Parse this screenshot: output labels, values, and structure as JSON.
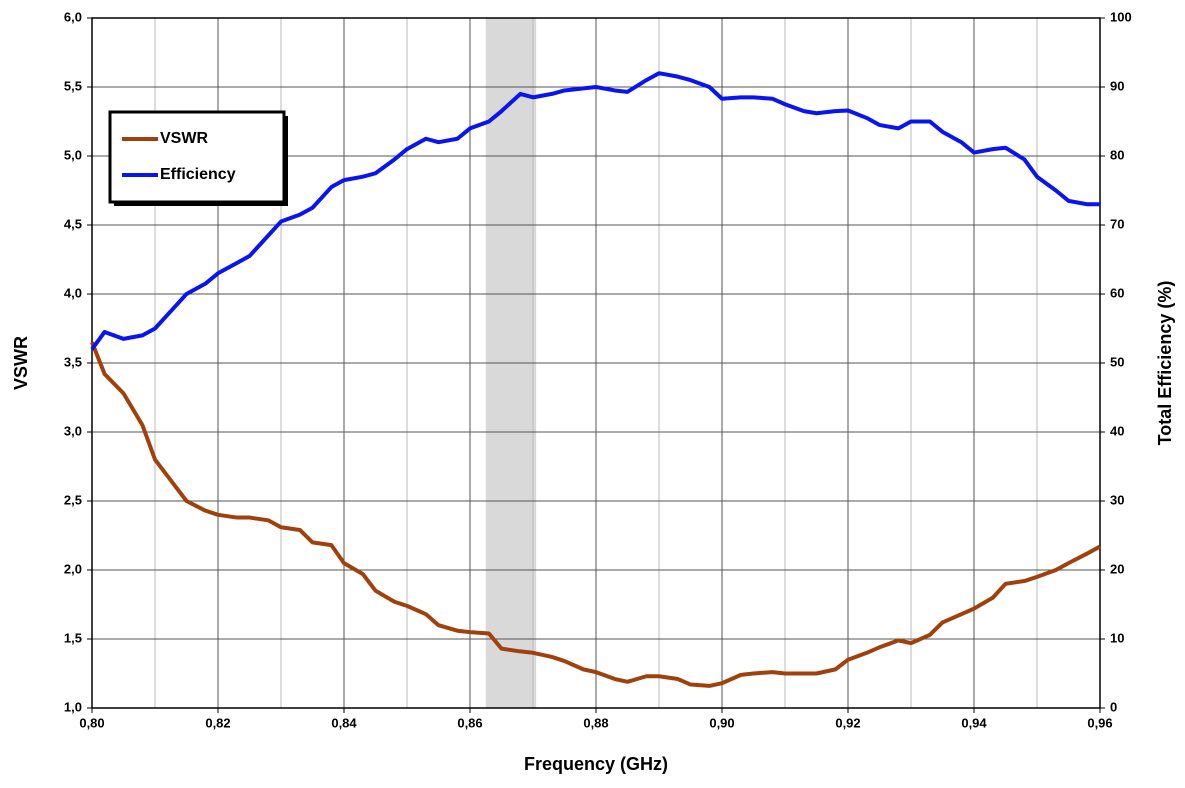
{
  "chart_data": {
    "type": "line",
    "xlabel": "Frequency (GHz)",
    "ylabel": "VSWR",
    "y2label": "Total Efficiency (%)",
    "x": [
      0.8,
      0.802,
      0.805,
      0.808,
      0.81,
      0.813,
      0.815,
      0.818,
      0.82,
      0.823,
      0.825,
      0.828,
      0.83,
      0.833,
      0.835,
      0.838,
      0.84,
      0.843,
      0.845,
      0.848,
      0.85,
      0.853,
      0.855,
      0.858,
      0.86,
      0.863,
      0.865,
      0.868,
      0.87,
      0.873,
      0.875,
      0.878,
      0.88,
      0.883,
      0.885,
      0.888,
      0.89,
      0.893,
      0.895,
      0.898,
      0.9,
      0.903,
      0.905,
      0.908,
      0.91,
      0.913,
      0.915,
      0.918,
      0.92,
      0.923,
      0.925,
      0.928,
      0.93,
      0.933,
      0.935,
      0.938,
      0.94,
      0.943,
      0.945,
      0.948,
      0.95,
      0.953,
      0.955,
      0.958,
      0.96
    ],
    "series": [
      {
        "name": "VSWR",
        "color": "#a0410d",
        "axis": "y",
        "values": [
          3.65,
          3.42,
          3.28,
          3.05,
          2.8,
          2.62,
          2.5,
          2.43,
          2.4,
          2.38,
          2.38,
          2.36,
          2.31,
          2.29,
          2.2,
          2.18,
          2.05,
          1.97,
          1.85,
          1.77,
          1.74,
          1.68,
          1.6,
          1.56,
          1.55,
          1.54,
          1.43,
          1.41,
          1.4,
          1.37,
          1.34,
          1.28,
          1.26,
          1.21,
          1.19,
          1.23,
          1.23,
          1.21,
          1.17,
          1.16,
          1.18,
          1.24,
          1.25,
          1.26,
          1.25,
          1.25,
          1.25,
          1.28,
          1.35,
          1.4,
          1.44,
          1.49,
          1.47,
          1.53,
          1.62,
          1.68,
          1.72,
          1.8,
          1.9,
          1.92,
          1.95,
          2.0,
          2.05,
          2.12,
          2.17
        ]
      },
      {
        "name": "Efficiency",
        "color": "#0a14f0",
        "axis": "y2",
        "values": [
          52,
          54.5,
          53.5,
          54,
          55,
          58,
          60,
          61.5,
          63,
          64.5,
          65.5,
          68.5,
          70.5,
          71.5,
          72.5,
          75.5,
          76.5,
          77,
          77.5,
          79.5,
          81,
          82.5,
          82,
          82.5,
          84,
          85,
          86.5,
          89,
          88.5,
          89,
          89.5,
          89.8,
          90,
          89.5,
          89.3,
          91,
          92,
          91.5,
          91,
          90,
          88.3,
          88.5,
          88.5,
          88.3,
          87.5,
          86.5,
          86.2,
          86.5,
          86.6,
          85.5,
          84.5,
          84,
          85,
          85,
          83.5,
          82,
          80.5,
          81,
          81.2,
          79.5,
          77,
          75,
          73.5,
          73,
          73
        ]
      }
    ],
    "xlim": [
      0.8,
      0.96
    ],
    "xticks": [
      {
        "value": 0.8,
        "label": "0,80"
      },
      {
        "value": 0.82,
        "label": "0,82"
      },
      {
        "value": 0.84,
        "label": "0,84"
      },
      {
        "value": 0.86,
        "label": "0,86"
      },
      {
        "value": 0.88,
        "label": "0,88"
      },
      {
        "value": 0.9,
        "label": "0,90"
      },
      {
        "value": 0.92,
        "label": "0,92"
      },
      {
        "value": 0.94,
        "label": "0,94"
      },
      {
        "value": 0.96,
        "label": "0,96"
      }
    ],
    "x_minor_grid": [
      0.81,
      0.83,
      0.85,
      0.87,
      0.89,
      0.91,
      0.93,
      0.95
    ],
    "ylim": [
      1.0,
      6.0
    ],
    "yticks": [
      {
        "value": 1.0,
        "label": "1,0"
      },
      {
        "value": 1.5,
        "label": "1,5"
      },
      {
        "value": 2.0,
        "label": "2,0"
      },
      {
        "value": 2.5,
        "label": "2,5"
      },
      {
        "value": 3.0,
        "label": "3,0"
      },
      {
        "value": 3.5,
        "label": "3,5"
      },
      {
        "value": 4.0,
        "label": "4,0"
      },
      {
        "value": 4.5,
        "label": "4,5"
      },
      {
        "value": 5.0,
        "label": "5,0"
      },
      {
        "value": 5.5,
        "label": "5,5"
      },
      {
        "value": 6.0,
        "label": "6,0"
      }
    ],
    "y2lim": [
      0,
      100
    ],
    "y2ticks": [
      0,
      10,
      20,
      30,
      40,
      50,
      60,
      70,
      80,
      90,
      100
    ],
    "shaded_region": {
      "x": [
        0.8625,
        0.8705
      ],
      "color": "#d9d9d9"
    },
    "grid": true,
    "legend": "upper-left"
  }
}
